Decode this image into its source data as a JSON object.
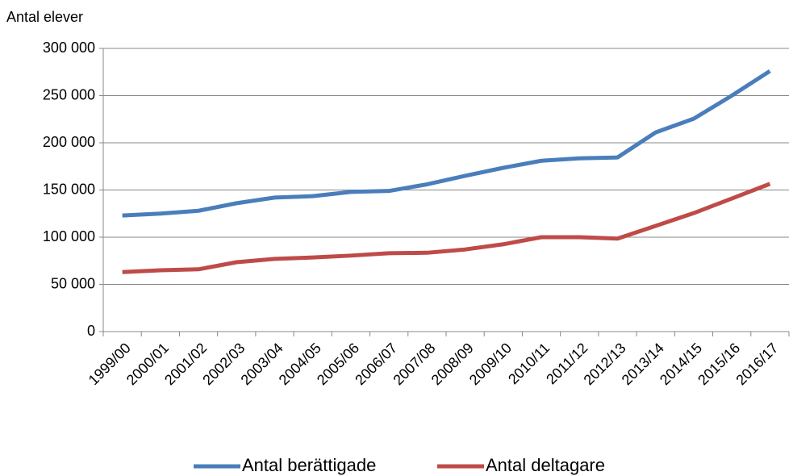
{
  "chart_data": {
    "type": "line",
    "y_label": "Antal elever",
    "categories": [
      "1999/00",
      "2000/01",
      "2001/02",
      "2002/03",
      "2003/04",
      "2004/05",
      "2005/06",
      "2006/07",
      "2007/08",
      "2008/09",
      "2009/10",
      "2010/11",
      "2011/12",
      "2012/13",
      "2013/14",
      "2014/15",
      "2015/16",
      "2016/17"
    ],
    "series": [
      {
        "name": "Antal berättigade",
        "color": "#4a7ebb",
        "values": [
          123000,
          125000,
          128000,
          136000,
          142000,
          143500,
          148000,
          149000,
          156000,
          165000,
          173500,
          181000,
          183500,
          184500,
          211000,
          225500,
          250000,
          276000
        ]
      },
      {
        "name": "Antal deltagare",
        "color": "#be4b48",
        "values": [
          63000,
          65000,
          66000,
          73500,
          77000,
          78500,
          80500,
          83000,
          83500,
          87000,
          92500,
          100000,
          100000,
          98500,
          112000,
          125500,
          141000,
          156500
        ]
      }
    ],
    "ylim": [
      0,
      300000
    ],
    "yticks": [
      0,
      {
        "value": 50000,
        "label": "50 000"
      },
      {
        "value": 100000,
        "label": "100 000"
      },
      {
        "value": 150000,
        "label": "150 000"
      },
      {
        "value": 200000,
        "label": "200 000"
      },
      {
        "value": 250000,
        "label": "250 000"
      },
      {
        "value": 300000,
        "label": "300 000"
      }
    ],
    "grid": true,
    "legend": "bottom"
  }
}
